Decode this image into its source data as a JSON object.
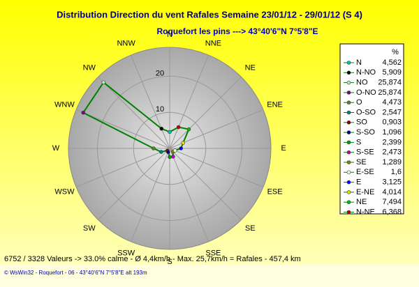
{
  "chart_data": {
    "type": "radar",
    "title": "Distribution Direction du vent Rafales  Semaine 23/01/12 - 29/01/12 (S 4)",
    "subtitle": "Roquefort les pins    --->  43°40'6\"N 7°5'8\"E",
    "directions": [
      "N",
      "NNE",
      "NE",
      "ENE",
      "E",
      "ESE",
      "SE",
      "SSE",
      "S",
      "SSW",
      "SW",
      "WSW",
      "W",
      "WNW",
      "NW",
      "NNW"
    ],
    "rlim": [
      0,
      28
    ],
    "rticks": [
      10,
      20
    ],
    "legend_title": "%",
    "line_color": "#008000",
    "series": {
      "names": [
        "N",
        "N-NO",
        "NO",
        "O-NO",
        "O",
        "O-SO",
        "SO",
        "S-SO",
        "S",
        "S-SE",
        "SE",
        "E-SE",
        "E",
        "E-NE",
        "NE",
        "N-NE"
      ],
      "values": [
        4.562,
        5.909,
        25.874,
        25.874,
        4.473,
        2.547,
        0.903,
        1.096,
        2.399,
        2.473,
        1.289,
        1.6,
        3.125,
        4.014,
        7.494,
        6.368
      ],
      "value_labels": [
        "4,562",
        "5,909",
        "25,874",
        "25,874",
        "4,473",
        "2,547",
        "0,903",
        "1,096",
        "2,399",
        "2,473",
        "1,289",
        "1,6",
        "3,125",
        "4,014",
        "7,494",
        "6,368"
      ],
      "colors": [
        "#00c0c0",
        "#000000",
        "#c0e0c0",
        "#800080",
        "#608020",
        "#008080",
        "#800000",
        "#000080",
        "#00a000",
        "#c000c0",
        "#808000",
        "#e0ffe0",
        "#0000ff",
        "#e0e000",
        "#00c000",
        "#c00000"
      ]
    },
    "footer": "6752 / 3328 Valeurs  -> 33.0% calme   -   Ø 4,4km/h   -   Max. 25,7km/h = Rafales   -   457,4 km",
    "credit": "© WsWin32  -  Roquefort - 06  -  43°40'6\"N 7°5'8\"E alt 193m"
  }
}
